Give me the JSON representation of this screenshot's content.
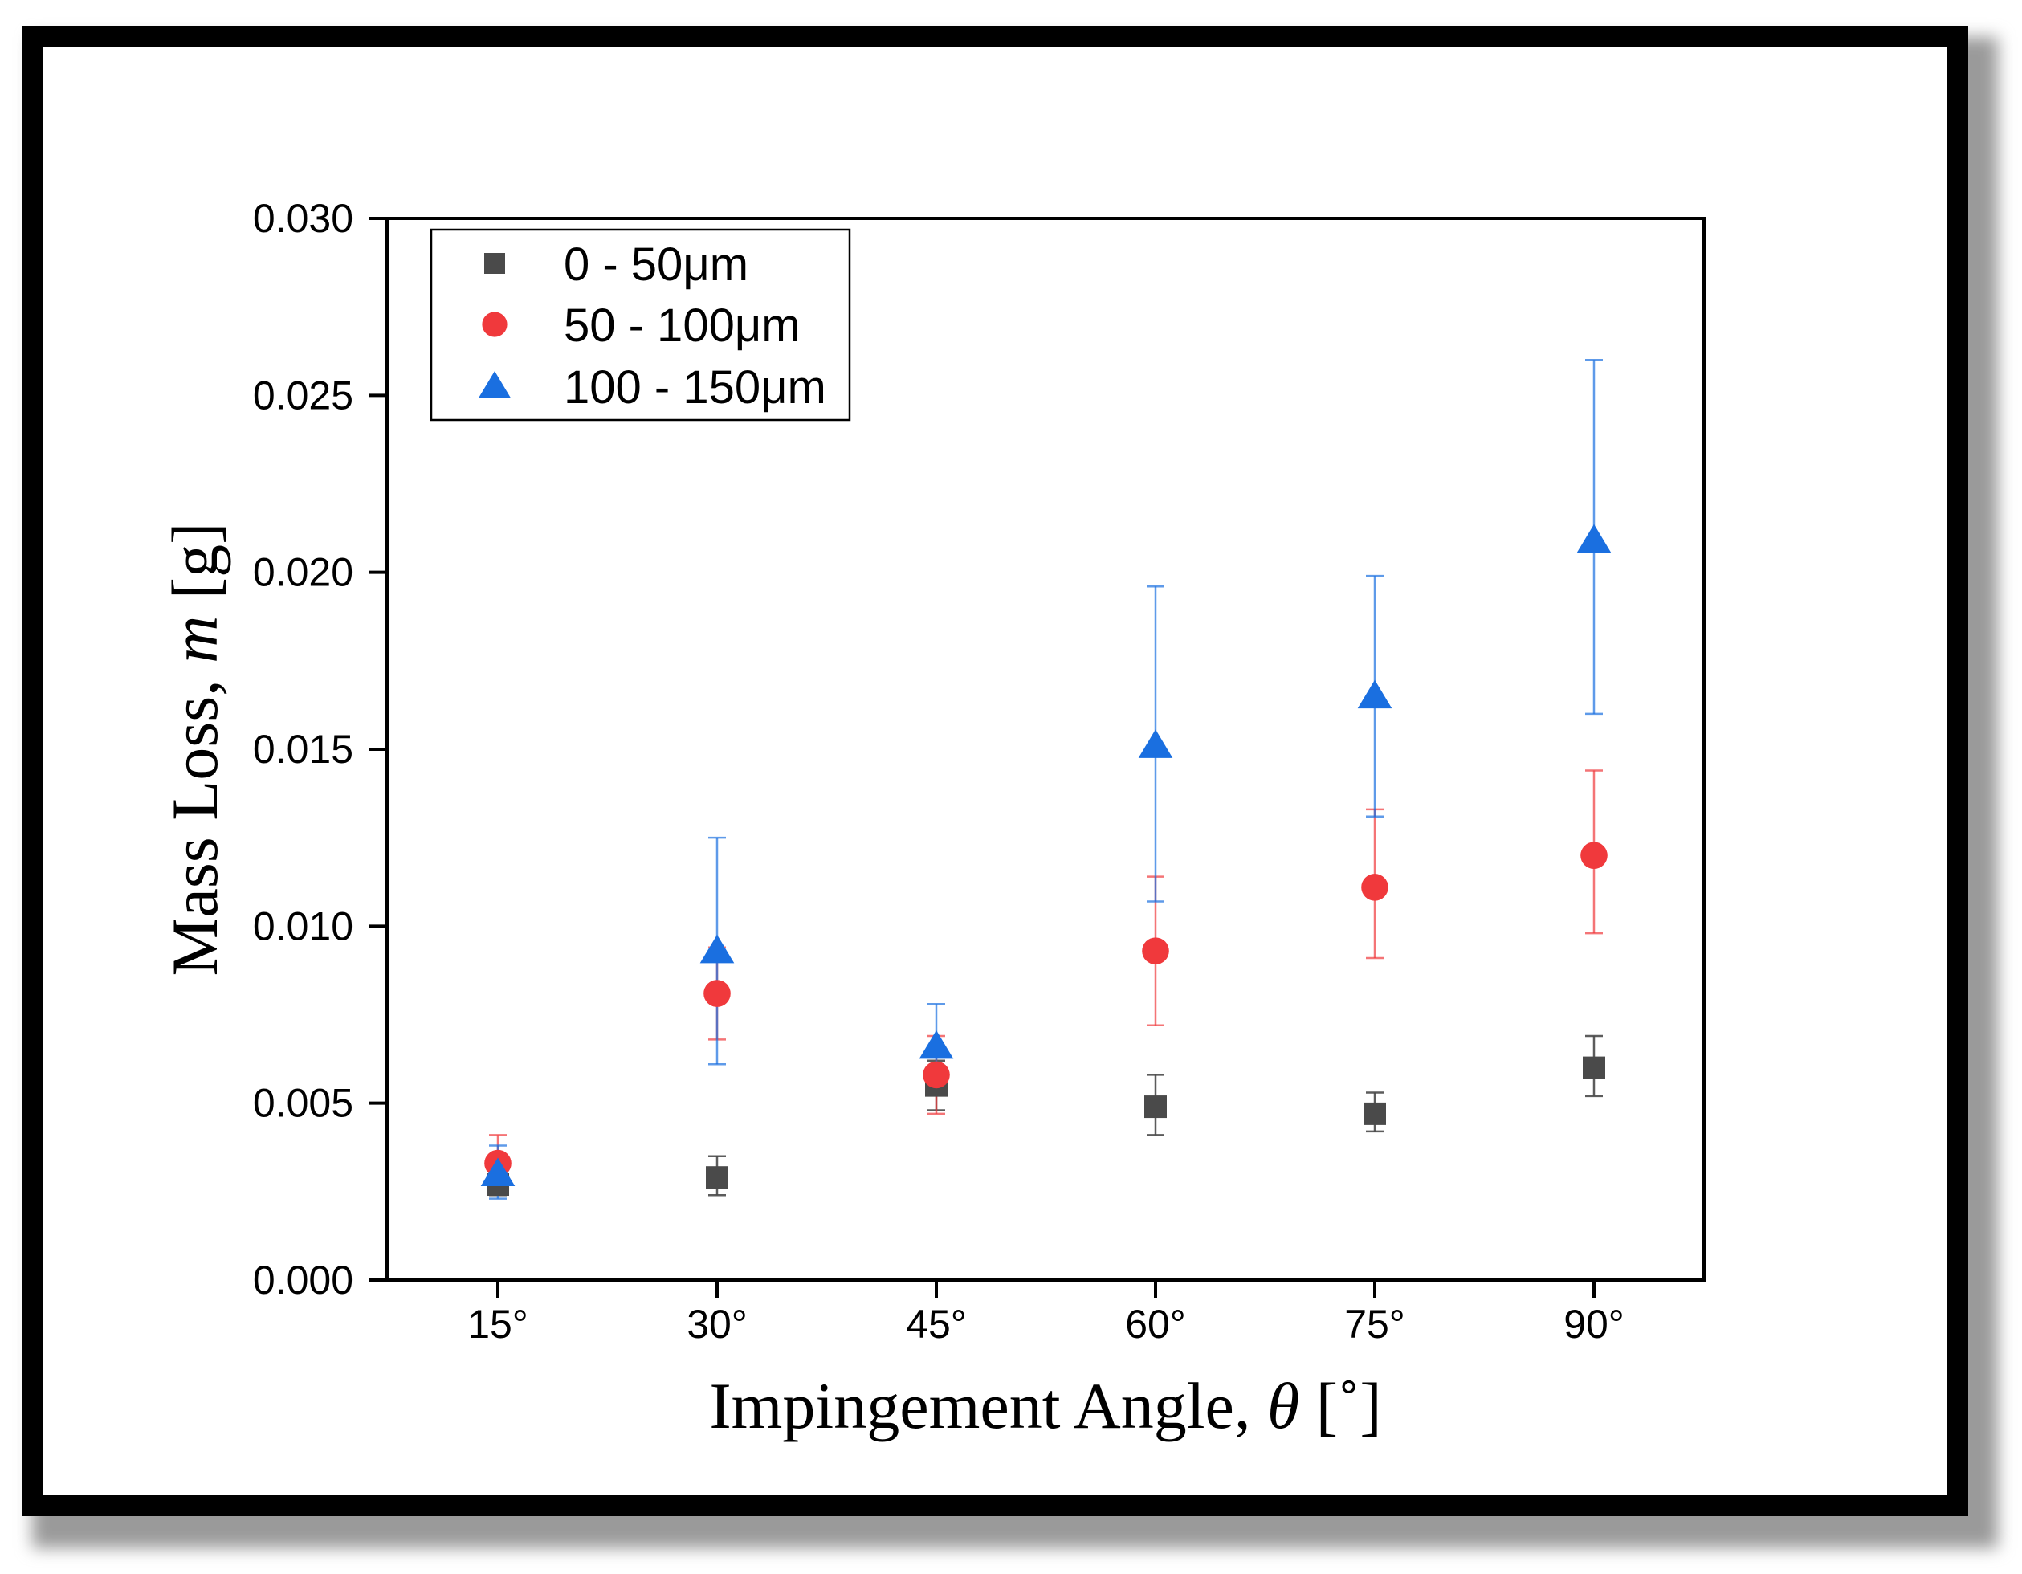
{
  "chart_data": {
    "type": "scatter",
    "title": "",
    "categories": [
      "15°",
      "30°",
      "45°",
      "60°",
      "75°",
      "90°"
    ],
    "xlabel": {
      "prefix": "Impingement Angle, ",
      "symbol": "θ",
      "suffix": " [˚]"
    },
    "ylabel": {
      "prefix": "Mass Loss, ",
      "symbol": "m",
      "suffix": " [g]"
    },
    "ylim": [
      0.0,
      0.03
    ],
    "yticks": [
      "0.000",
      "0.005",
      "0.010",
      "0.015",
      "0.020",
      "0.025",
      "0.030"
    ],
    "grid": false,
    "legend_position": "top-left",
    "series": [
      {
        "name": "0 - 50μm",
        "marker": "square",
        "color": "#4a4a4a",
        "values": [
          0.0027,
          0.0029,
          0.0055,
          0.0049,
          0.0047,
          0.006
        ],
        "err_low": [
          0.0024,
          0.0024,
          0.0048,
          0.0041,
          0.0042,
          0.0052
        ],
        "err_high": [
          0.003,
          0.0035,
          0.0062,
          0.0058,
          0.0053,
          0.0069
        ]
      },
      {
        "name": "50 - 100μm",
        "marker": "circle",
        "color": "#f0393c",
        "values": [
          0.0033,
          0.0081,
          0.0058,
          0.0093,
          0.0111,
          0.012
        ],
        "err_low": [
          0.0026,
          0.0068,
          0.0047,
          0.0072,
          0.0091,
          0.0098
        ],
        "err_high": [
          0.0041,
          0.0094,
          0.0069,
          0.0114,
          0.0133,
          0.0144
        ]
      },
      {
        "name": "100 - 150μm",
        "marker": "triangle",
        "color": "#1a6fe0",
        "values": [
          0.003,
          0.0093,
          0.0066,
          0.0151,
          0.0165,
          0.0209
        ],
        "err_low": [
          0.0023,
          0.0061,
          0.0054,
          0.0107,
          0.0131,
          0.016
        ],
        "err_high": [
          0.0038,
          0.0125,
          0.0078,
          0.0196,
          0.0199,
          0.026
        ]
      }
    ]
  }
}
